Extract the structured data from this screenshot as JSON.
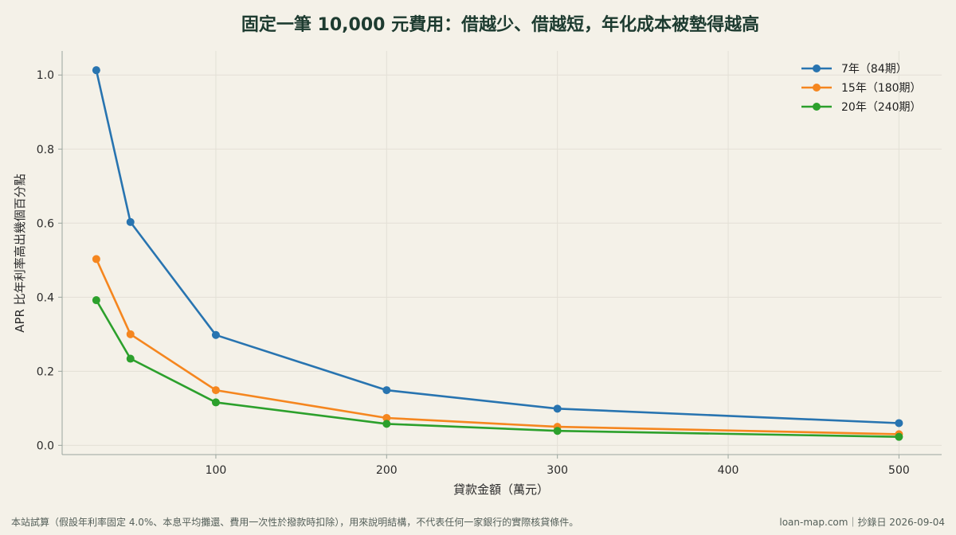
{
  "chart_data": {
    "type": "line",
    "title": "固定一筆 10,000 元費用：借越少、借越短，年化成本被墊得越高",
    "xlabel": "貸款金額（萬元）",
    "ylabel": "APR 比年利率高出幾個百分點",
    "x": [
      30,
      50,
      100,
      200,
      300,
      500
    ],
    "xticks": [
      100,
      200,
      300,
      400,
      500
    ],
    "xlim": [
      10,
      525
    ],
    "yticks": [
      "0.0",
      "0.2",
      "0.4",
      "0.6",
      "0.8",
      "1.0"
    ],
    "ylim": [
      -0.025,
      1.065
    ],
    "grid": true,
    "legend_position": "top-right",
    "series": [
      {
        "name": "7年（84期）",
        "color": "#2874b0",
        "values": [
          1.013,
          0.603,
          0.298,
          0.149,
          0.099,
          0.06
        ]
      },
      {
        "name": "15年（180期）",
        "color": "#f5861f",
        "values": [
          0.503,
          0.3,
          0.149,
          0.074,
          0.05,
          0.03
        ]
      },
      {
        "name": "20年（240期）",
        "color": "#2ca02c",
        "values": [
          0.392,
          0.234,
          0.116,
          0.058,
          0.039,
          0.023
        ]
      }
    ]
  },
  "footer": {
    "note": "本站試算（假設年利率固定 4.0%、本息平均攤還、費用一次性於撥款時扣除），用來說明結構，不代表任何一家銀行的實際核貸條件。",
    "source": "loan-map.com｜抄錄日 2026-09-04"
  },
  "colors": {
    "background": "#f4f1e8",
    "title": "#1d3b30",
    "grid": "#e3e0d6",
    "axis": "#9aa59e"
  }
}
